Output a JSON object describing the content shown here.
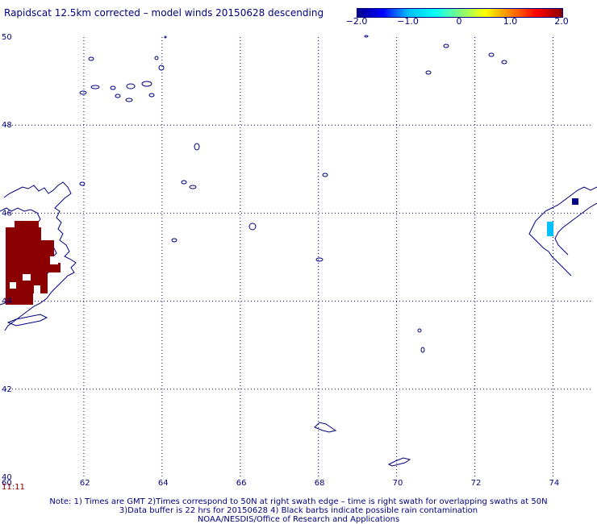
{
  "title": "Rapidscat 12.5km corrected – model winds 20150628 descending",
  "colorbar": {
    "colors": [
      "#00008b",
      "#0000ff",
      "#00bfff",
      "#00ffff",
      "#7fff7f",
      "#ffff00",
      "#ff7f00",
      "#ff0000",
      "#8b0000"
    ],
    "ticks": [
      {
        "value": -2.0,
        "label": "−2.0"
      },
      {
        "value": -1.0,
        "label": "−1.0"
      },
      {
        "value": 0,
        "label": "0"
      },
      {
        "value": 1.0,
        "label": "1.0"
      },
      {
        "value": 2.0,
        "label": "2.0"
      }
    ],
    "range": [
      -2.0,
      2.0
    ]
  },
  "map": {
    "lat_range": [
      40,
      50
    ],
    "lon_range": [
      60,
      75
    ],
    "lat_labels": [
      "50",
      "48",
      "46",
      "44",
      "42",
      "40"
    ],
    "lon_labels": [
      "60",
      "62",
      "64",
      "66",
      "68",
      "70",
      "72",
      "74"
    ],
    "grid": "dotted",
    "coastline_color": "#000080",
    "data_color_high": "#8b0000",
    "data_color_mid": "#00bfff",
    "data_color_low": "#00008b"
  },
  "time_label": "11:11",
  "notes": {
    "line1": "Note: 1) Times are GMT 2)Times correspond to 50N at right swath edge – time is right swath for overlapping swaths at 50N",
    "line2": "3)Data buffer is 22 hrs for 20150628 4) Black barbs indicate possible rain contamination",
    "line3": "NOAA/NESDIS/Office of Research and Applications"
  }
}
